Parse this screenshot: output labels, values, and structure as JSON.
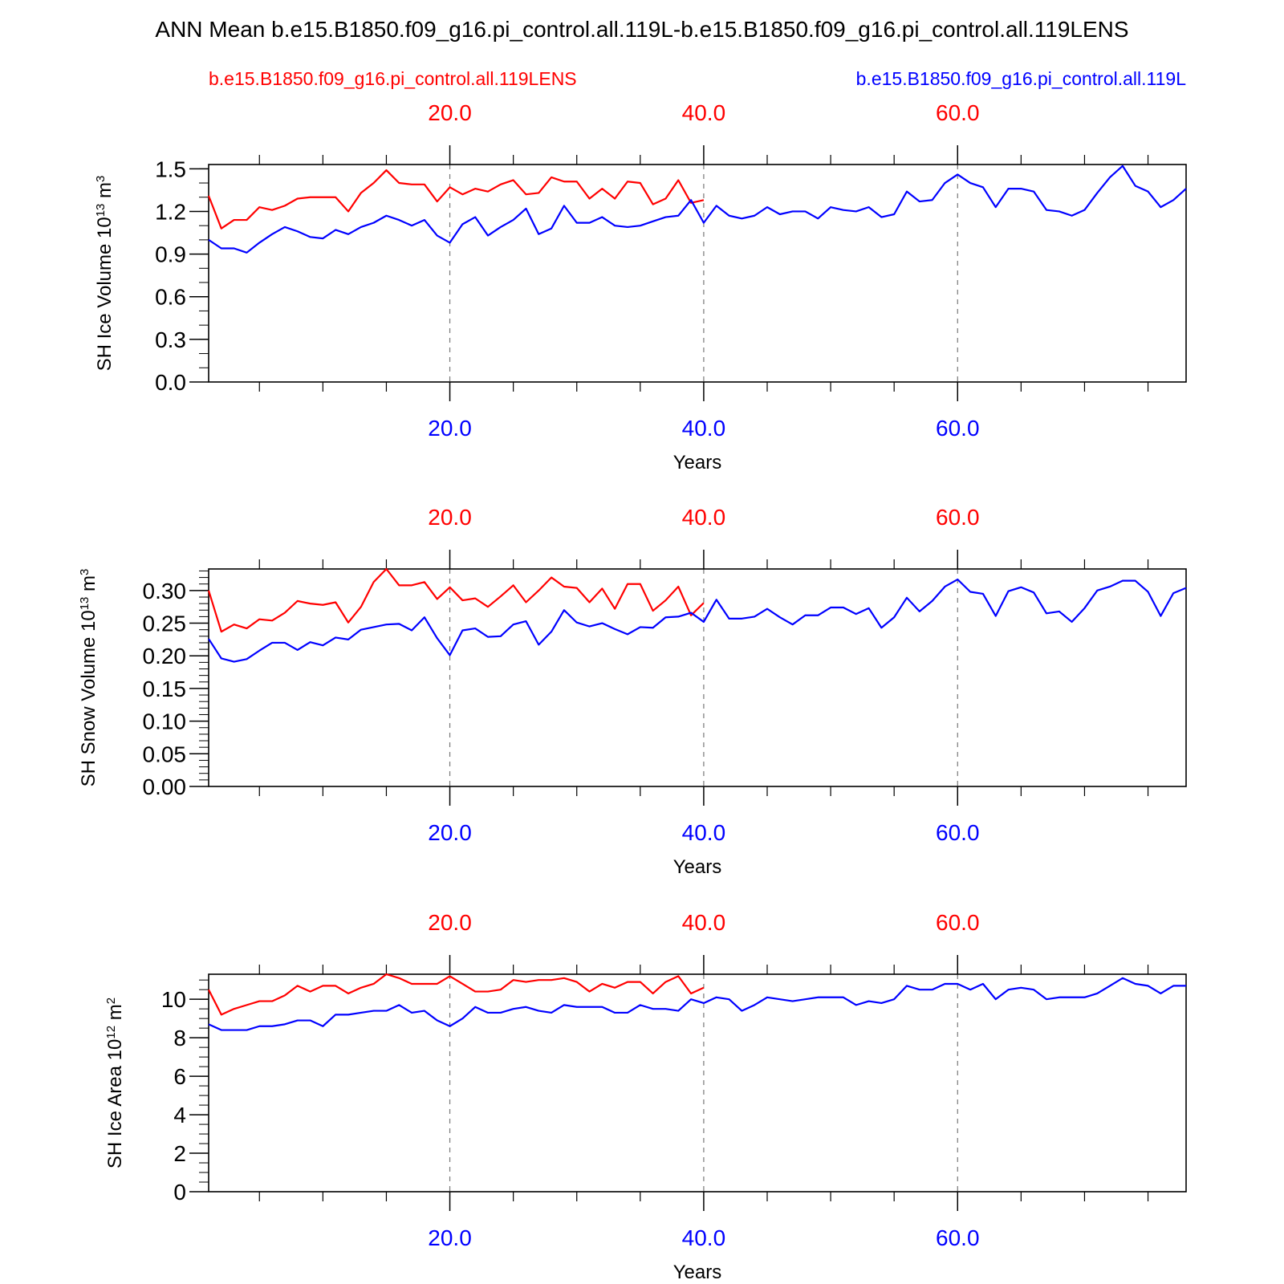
{
  "figure": {
    "title": "ANN Mean b.e15.B1850.f09_g16.pi_control.all.119L-b.e15.B1850.f09_g16.pi_control.all.119LENS",
    "legend_red": "b.e15.B1850.f09_g16.pi_control.all.119LENS",
    "legend_blue": "b.e15.B1850.f09_g16.pi_control.all.119L",
    "colors": {
      "red": "#ff0000",
      "blue": "#0000ff",
      "axis": "#000000",
      "grid": "#777777"
    }
  },
  "chart_data": [
    {
      "type": "line",
      "ylabel": "SH Ice Volume 10",
      "ylabel_exp": "13",
      "ylabel_unit": " m",
      "ylabel_unit_exp": "3",
      "xlabel": "Years",
      "xlim": [
        1,
        78
      ],
      "ylim": [
        0,
        1.53
      ],
      "yticks": [
        0.0,
        0.3,
        0.6,
        0.9,
        1.2,
        1.5
      ],
      "ytick_labels": [
        "0.0",
        "0.3",
        "0.6",
        "0.9",
        "1.2",
        "1.5"
      ],
      "yminor_step": 0.1,
      "xticks_major": [
        20,
        40,
        60
      ],
      "xtick_labels": [
        "20.0",
        "40.0",
        "60.0"
      ],
      "xticks_minor": [
        5,
        10,
        15,
        25,
        30,
        35,
        45,
        50,
        55,
        65,
        70,
        75
      ],
      "grid": "dashed vertical at major x ticks",
      "series": [
        {
          "name": "b.e15.B1850.f09_g16.pi_control.all.119LENS",
          "color": "#ff0000",
          "x_start": 1,
          "values": [
            1.31,
            1.08,
            1.14,
            1.14,
            1.23,
            1.21,
            1.24,
            1.29,
            1.3,
            1.3,
            1.3,
            1.2,
            1.33,
            1.4,
            1.49,
            1.4,
            1.39,
            1.39,
            1.27,
            1.37,
            1.32,
            1.36,
            1.34,
            1.39,
            1.42,
            1.32,
            1.33,
            1.44,
            1.41,
            1.41,
            1.29,
            1.36,
            1.29,
            1.41,
            1.4,
            1.25,
            1.29,
            1.42,
            1.26,
            1.28
          ]
        },
        {
          "name": "b.e15.B1850.f09_g16.pi_control.all.119L",
          "color": "#0000ff",
          "x_start": 1,
          "values": [
            1.0,
            0.94,
            0.94,
            0.91,
            0.98,
            1.04,
            1.09,
            1.06,
            1.02,
            1.01,
            1.07,
            1.04,
            1.09,
            1.12,
            1.17,
            1.14,
            1.1,
            1.14,
            1.03,
            0.98,
            1.11,
            1.16,
            1.03,
            1.09,
            1.14,
            1.22,
            1.04,
            1.08,
            1.24,
            1.12,
            1.12,
            1.16,
            1.1,
            1.09,
            1.1,
            1.13,
            1.16,
            1.17,
            1.28,
            1.12,
            1.24,
            1.17,
            1.15,
            1.17,
            1.23,
            1.18,
            1.2,
            1.2,
            1.15,
            1.23,
            1.21,
            1.2,
            1.23,
            1.16,
            1.18,
            1.34,
            1.27,
            1.28,
            1.4,
            1.46,
            1.4,
            1.37,
            1.23,
            1.36,
            1.36,
            1.34,
            1.21,
            1.2,
            1.17,
            1.21,
            1.33,
            1.44,
            1.52,
            1.38,
            1.34,
            1.23,
            1.28,
            1.36
          ]
        }
      ]
    },
    {
      "type": "line",
      "ylabel": "SH Snow Volume 10",
      "ylabel_exp": "13",
      "ylabel_unit": " m",
      "ylabel_unit_exp": "3",
      "xlabel": "Years",
      "xlim": [
        1,
        78
      ],
      "ylim": [
        0,
        0.333
      ],
      "yticks": [
        0.0,
        0.05,
        0.1,
        0.15,
        0.2,
        0.25,
        0.3
      ],
      "ytick_labels": [
        "0.00",
        "0.05",
        "0.10",
        "0.15",
        "0.20",
        "0.25",
        "0.30"
      ],
      "yminor_step": 0.01,
      "xticks_major": [
        20,
        40,
        60
      ],
      "xtick_labels": [
        "20.0",
        "40.0",
        "60.0"
      ],
      "xticks_minor": [
        5,
        10,
        15,
        25,
        30,
        35,
        45,
        50,
        55,
        65,
        70,
        75
      ],
      "grid": "dashed vertical at major x ticks",
      "series": [
        {
          "name": "b.e15.B1850.f09_g16.pi_control.all.119LENS",
          "color": "#ff0000",
          "x_start": 1,
          "values": [
            0.3,
            0.237,
            0.248,
            0.242,
            0.256,
            0.254,
            0.266,
            0.284,
            0.28,
            0.278,
            0.282,
            0.251,
            0.275,
            0.313,
            0.333,
            0.308,
            0.308,
            0.313,
            0.287,
            0.305,
            0.285,
            0.288,
            0.275,
            0.291,
            0.308,
            0.282,
            0.3,
            0.32,
            0.306,
            0.304,
            0.282,
            0.303,
            0.272,
            0.31,
            0.31,
            0.269,
            0.285,
            0.306,
            0.262,
            0.281
          ]
        },
        {
          "name": "b.e15.B1850.f09_g16.pi_control.all.119L",
          "color": "#0000ff",
          "x_start": 1,
          "values": [
            0.226,
            0.196,
            0.191,
            0.195,
            0.208,
            0.22,
            0.22,
            0.209,
            0.221,
            0.216,
            0.228,
            0.225,
            0.24,
            0.244,
            0.248,
            0.249,
            0.239,
            0.259,
            0.227,
            0.201,
            0.239,
            0.242,
            0.229,
            0.23,
            0.248,
            0.253,
            0.217,
            0.237,
            0.27,
            0.251,
            0.245,
            0.25,
            0.241,
            0.233,
            0.244,
            0.243,
            0.259,
            0.26,
            0.266,
            0.252,
            0.286,
            0.257,
            0.257,
            0.26,
            0.272,
            0.259,
            0.248,
            0.262,
            0.262,
            0.274,
            0.274,
            0.264,
            0.273,
            0.243,
            0.259,
            0.289,
            0.268,
            0.284,
            0.306,
            0.317,
            0.298,
            0.295,
            0.261,
            0.299,
            0.305,
            0.297,
            0.265,
            0.268,
            0.252,
            0.273,
            0.3,
            0.306,
            0.315,
            0.315,
            0.298,
            0.261,
            0.296,
            0.304
          ]
        }
      ]
    },
    {
      "type": "line",
      "ylabel": "SH Ice Area 10",
      "ylabel_exp": "12",
      "ylabel_unit": " m",
      "ylabel_unit_exp": "2",
      "xlabel": "Years",
      "xlim": [
        1,
        78
      ],
      "ylim": [
        0,
        11.3
      ],
      "yticks": [
        0,
        2,
        4,
        6,
        8,
        10
      ],
      "ytick_labels": [
        "0",
        "2",
        "4",
        "6",
        "8",
        "10"
      ],
      "yminor_step": 0.5,
      "xticks_major": [
        20,
        40,
        60
      ],
      "xtick_labels": [
        "20.0",
        "40.0",
        "60.0"
      ],
      "xticks_minor": [
        5,
        10,
        15,
        25,
        30,
        35,
        45,
        50,
        55,
        65,
        70,
        75
      ],
      "grid": "dashed vertical at major x ticks",
      "series": [
        {
          "name": "b.e15.B1850.f09_g16.pi_control.all.119LENS",
          "color": "#ff0000",
          "x_start": 1,
          "values": [
            10.5,
            9.2,
            9.5,
            9.7,
            9.9,
            9.9,
            10.2,
            10.7,
            10.4,
            10.7,
            10.7,
            10.3,
            10.6,
            10.8,
            11.3,
            11.1,
            10.8,
            10.8,
            10.8,
            11.2,
            10.8,
            10.4,
            10.4,
            10.5,
            11.0,
            10.9,
            11.0,
            11.0,
            11.1,
            10.9,
            10.4,
            10.8,
            10.6,
            10.9,
            10.9,
            10.3,
            10.9,
            11.2,
            10.3,
            10.6
          ]
        },
        {
          "name": "b.e15.B1850.f09_g16.pi_control.all.119L",
          "color": "#0000ff",
          "x_start": 1,
          "values": [
            8.7,
            8.4,
            8.4,
            8.4,
            8.6,
            8.6,
            8.7,
            8.9,
            8.9,
            8.6,
            9.2,
            9.2,
            9.3,
            9.4,
            9.4,
            9.7,
            9.3,
            9.4,
            8.9,
            8.6,
            9.0,
            9.6,
            9.3,
            9.3,
            9.5,
            9.6,
            9.4,
            9.3,
            9.7,
            9.6,
            9.6,
            9.6,
            9.3,
            9.3,
            9.7,
            9.5,
            9.5,
            9.4,
            10.0,
            9.8,
            10.1,
            10.0,
            9.4,
            9.7,
            10.1,
            10.0,
            9.9,
            10.0,
            10.1,
            10.1,
            10.1,
            9.7,
            9.9,
            9.8,
            10.0,
            10.7,
            10.5,
            10.5,
            10.8,
            10.8,
            10.5,
            10.8,
            10.0,
            10.5,
            10.6,
            10.5,
            10.0,
            10.1,
            10.1,
            10.1,
            10.3,
            10.7,
            11.1,
            10.8,
            10.7,
            10.3,
            10.7,
            10.7
          ]
        }
      ]
    }
  ]
}
